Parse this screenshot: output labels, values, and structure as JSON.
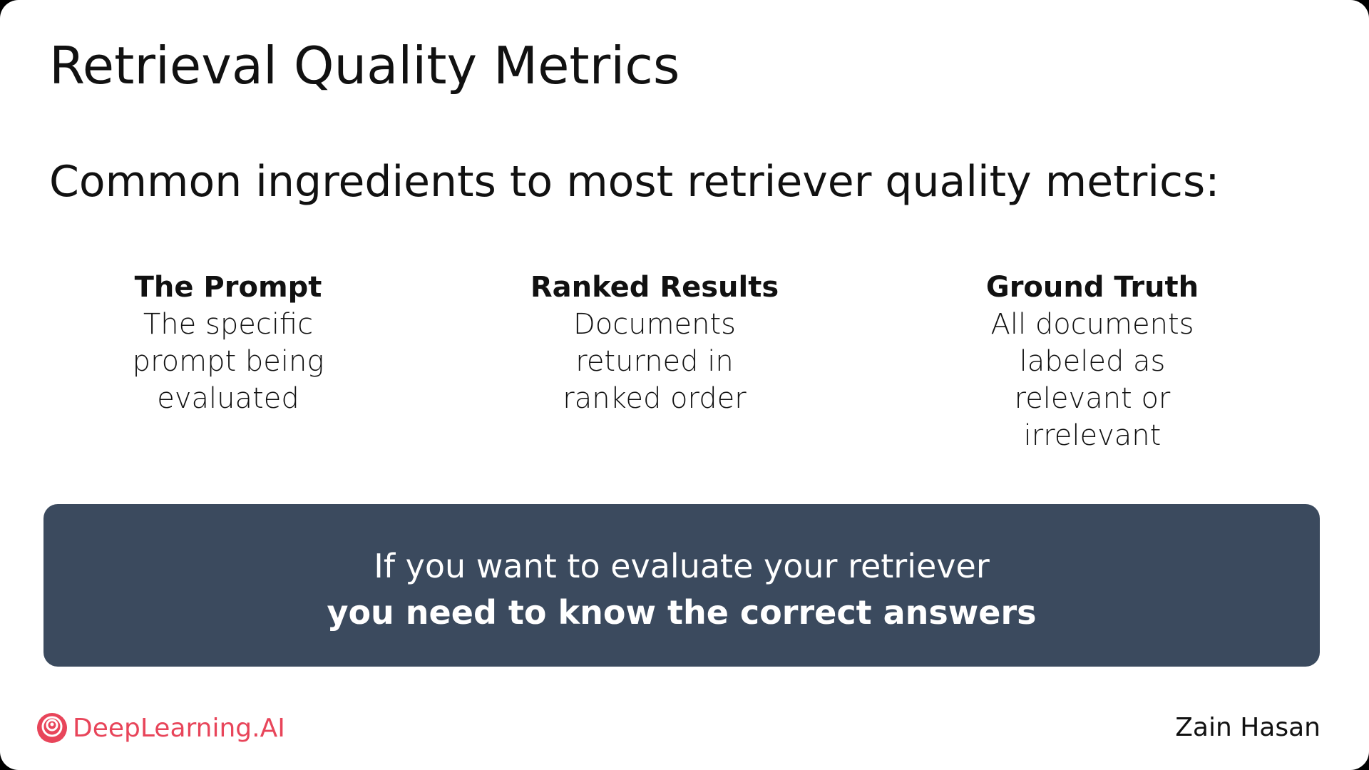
{
  "slide": {
    "title": "Retrieval Quality Metrics",
    "subtitle": "Common ingredients to most retriever quality metrics:",
    "columns": [
      {
        "heading": "The Prompt",
        "lines": [
          "The specific",
          "prompt being",
          "evaluated"
        ]
      },
      {
        "heading": "Ranked Results",
        "lines": [
          "Documents",
          "returned in",
          "ranked order"
        ]
      },
      {
        "heading": "Ground Truth",
        "lines": [
          "All documents",
          "labeled as",
          "relevant or",
          "irrelevant"
        ]
      }
    ],
    "banner": {
      "line1": "If you want to evaluate your retriever",
      "line2": "you need to know the correct answers"
    }
  },
  "footer": {
    "logo_text": "DeepLearning.AI",
    "logo_icon": "deeplearning-ai-logo-icon",
    "author": "Zain Hasan"
  },
  "colors": {
    "banner_bg": "#3b4a5e",
    "brand": "#e8455a",
    "text": "#111111",
    "background": "#ffffff"
  }
}
